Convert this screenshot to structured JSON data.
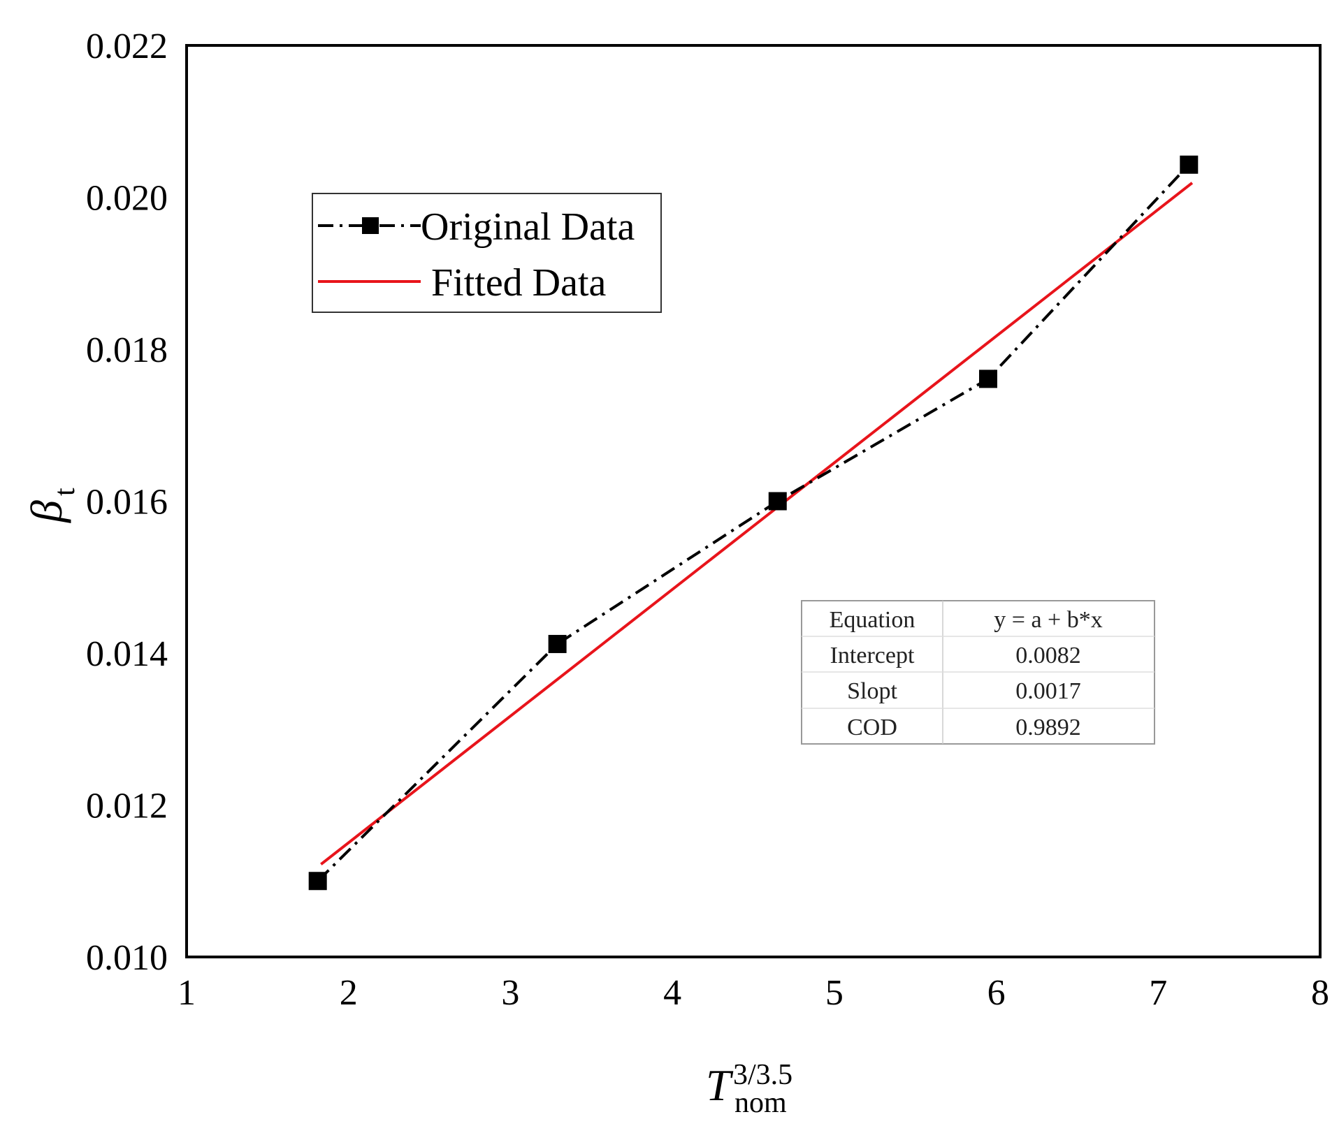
{
  "chart_data": {
    "type": "line",
    "x_label": {
      "base": "T",
      "sub": "nom",
      "sup": "3/3.5"
    },
    "y_label": {
      "base": "β",
      "sub": "t"
    },
    "xlim": [
      1,
      8
    ],
    "ylim": [
      0.01,
      0.022
    ],
    "x_ticks": [
      "1",
      "2",
      "3",
      "4",
      "5",
      "6",
      "7",
      "8"
    ],
    "y_ticks": [
      "0.010",
      "0.012",
      "0.014",
      "0.016",
      "0.018",
      "0.020",
      "0.022"
    ],
    "grid": false,
    "legend_position": "top-left",
    "series": [
      {
        "name": "Original Data",
        "color": "#000000",
        "line_style": "dash-dot",
        "marker": "square",
        "points": [
          {
            "x": 1.81,
            "y": 0.011
          },
          {
            "x": 3.29,
            "y": 0.01412
          },
          {
            "x": 4.65,
            "y": 0.016
          },
          {
            "x": 5.95,
            "y": 0.01761
          },
          {
            "x": 7.19,
            "y": 0.02043
          }
        ]
      },
      {
        "name": "Fitted Data",
        "color": "#e8141b",
        "line_style": "solid",
        "marker": "none",
        "points": [
          {
            "x": 1.83,
            "y": 0.01122
          },
          {
            "x": 7.21,
            "y": 0.02019
          }
        ]
      }
    ],
    "fit_table": {
      "rows": [
        {
          "label": "Equation",
          "value": "y = a + b*x"
        },
        {
          "label": "Intercept",
          "value": "0.0082"
        },
        {
          "label": "Slopt",
          "value": "0.0017"
        },
        {
          "label": "COD",
          "value": "0.9892"
        }
      ]
    }
  }
}
